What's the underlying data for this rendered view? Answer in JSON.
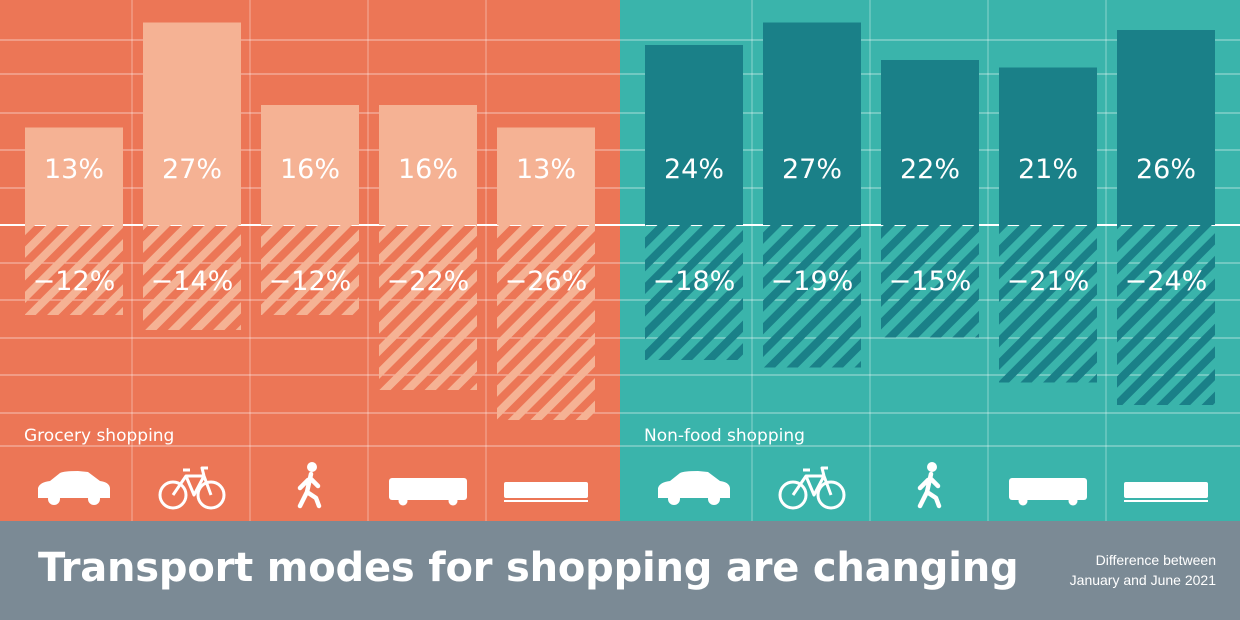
{
  "chart_data": [
    {
      "type": "bar",
      "panel": "Grocery shopping",
      "categories": [
        "car",
        "bicycle",
        "walking",
        "bus",
        "train"
      ],
      "series": [
        {
          "name": "",
          "values": [
            13,
            27,
            16,
            16,
            13
          ]
        },
        {
          "name": "",
          "values": [
            -12,
            -14,
            -12,
            -22,
            -26
          ]
        }
      ],
      "labels_positive": [
        "13%",
        "27%",
        "16%",
        "16%",
        "13%"
      ],
      "labels_negative": [
        "−12%",
        "−14%",
        "−12%",
        "−22%",
        "−26%"
      ],
      "ylim": [
        -28,
        28
      ],
      "grid": true,
      "colors": {
        "background": "#ec7656",
        "bar": "#f5b294",
        "hatch": "#f5b294"
      }
    },
    {
      "type": "bar",
      "panel": "Non-food shopping",
      "categories": [
        "car",
        "bicycle",
        "walking",
        "bus",
        "train"
      ],
      "series": [
        {
          "name": "",
          "values": [
            24,
            27,
            22,
            21,
            26
          ]
        },
        {
          "name": "",
          "values": [
            -18,
            -19,
            -15,
            -21,
            -24
          ]
        }
      ],
      "labels_positive": [
        "24%",
        "27%",
        "22%",
        "21%",
        "26%"
      ],
      "labels_negative": [
        "−18%",
        "−19%",
        "−15%",
        "−21%",
        "−24%"
      ],
      "ylim": [
        -28,
        28
      ],
      "grid": true,
      "colors": {
        "background": "#3ab4ab",
        "bar": "#1a8088",
        "hatch": "#1a8088"
      }
    }
  ],
  "icons": [
    "car-icon",
    "bicycle-icon",
    "walking-icon",
    "bus-icon",
    "train-icon"
  ],
  "footer": {
    "title": "Transport modes for shopping are changing",
    "note_line1": "Difference between",
    "note_line2": "January and June 2021",
    "background": "#7b8a95"
  }
}
